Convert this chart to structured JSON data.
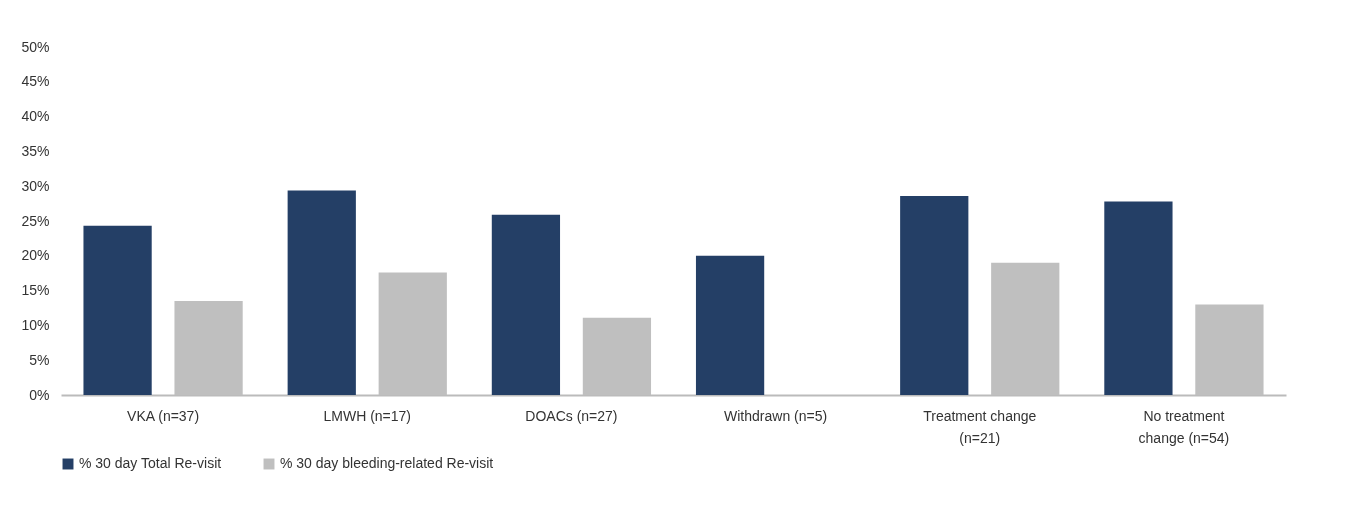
{
  "chart_data": {
    "type": "bar",
    "categories": [
      "VKA (n=37)",
      "LMWH (n=17)",
      "DOACs (n=27)",
      "Withdrawn  (n=5)",
      "Treatment change (n=21)",
      "No treatment change (n=54)"
    ],
    "series": [
      {
        "name": "% 30 day Total Re-visit",
        "color": "#243f66",
        "values": [
          24.3,
          29.4,
          25.9,
          20.0,
          28.6,
          27.8
        ]
      },
      {
        "name": "% 30 day bleeding-related Re-visit",
        "color": "#bfbfbf",
        "values": [
          13.5,
          17.6,
          11.1,
          0,
          19.0,
          13.0
        ]
      }
    ],
    "ylim": [
      0,
      50
    ],
    "yticks": [
      {
        "value": 0,
        "label": "0%"
      },
      {
        "value": 5,
        "label": "5%"
      },
      {
        "value": 10,
        "label": "10%"
      },
      {
        "value": 15,
        "label": "15%"
      },
      {
        "value": 20,
        "label": "20%"
      },
      {
        "value": 25,
        "label": "25%"
      },
      {
        "value": 30,
        "label": "30%"
      },
      {
        "value": 35,
        "label": "35%"
      },
      {
        "value": 40,
        "label": "40%"
      },
      {
        "value": 45,
        "label": "45%"
      },
      {
        "value": 50,
        "label": "50%"
      }
    ],
    "grid": false,
    "legend": "bottom"
  }
}
